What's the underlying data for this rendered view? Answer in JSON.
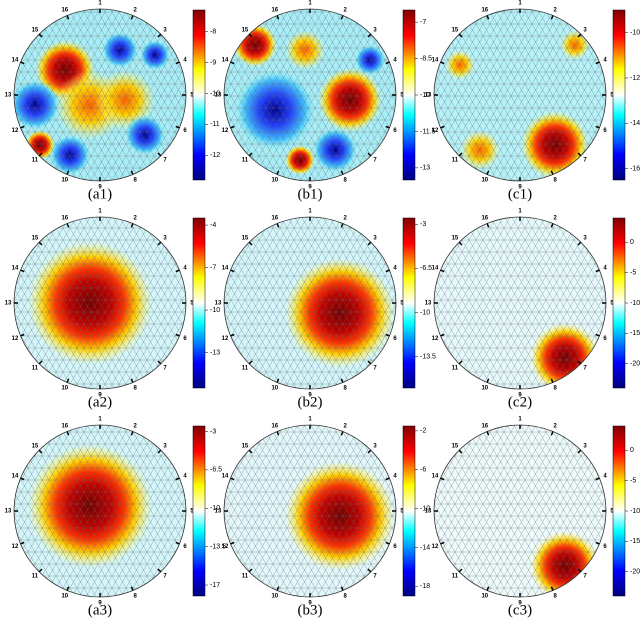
{
  "electrode_labels": [
    "1",
    "2",
    "3",
    "4",
    "5",
    "6",
    "7",
    "8",
    "9",
    "10",
    "11",
    "12",
    "13",
    "14",
    "15",
    "16"
  ],
  "panels": [
    {
      "label": "(a1)",
      "colorbar": {
        "range": [
          -7.3,
          -12.8
        ],
        "ticks": [
          -8,
          -9,
          -10,
          -11,
          -12
        ]
      }
    },
    {
      "label": "(b1)",
      "colorbar": {
        "range": [
          -6.5,
          -13.5
        ],
        "ticks": [
          -7,
          -8.5,
          -10,
          -11.5,
          -13
        ]
      }
    },
    {
      "label": "(c1)",
      "colorbar": {
        "range": [
          -9,
          -16.5
        ],
        "ticks": [
          -10,
          -12,
          -14,
          -16
        ]
      }
    },
    {
      "label": "(a2)",
      "colorbar": {
        "range": [
          -3.5,
          -15.5
        ],
        "ticks": [
          -4,
          -7,
          -10,
          -13
        ]
      }
    },
    {
      "label": "(b2)",
      "colorbar": {
        "range": [
          -2.5,
          -16
        ],
        "ticks": [
          -3,
          -6.5,
          -10,
          -13.5
        ]
      }
    },
    {
      "label": "(c2)",
      "colorbar": {
        "range": [
          4,
          -24
        ],
        "ticks": [
          0,
          -5,
          -10,
          -15,
          -20
        ]
      }
    },
    {
      "label": "(a3)",
      "colorbar": {
        "range": [
          -2.5,
          -18
        ],
        "ticks": [
          -3,
          -6.5,
          -10,
          -13.5,
          -17
        ]
      }
    },
    {
      "label": "(b3)",
      "colorbar": {
        "range": [
          -1.5,
          -19
        ],
        "ticks": [
          -2,
          -6,
          -10,
          -14,
          -18
        ]
      }
    },
    {
      "label": "(c3)",
      "colorbar": {
        "range": [
          4,
          -24
        ],
        "ticks": [
          0,
          -5,
          -10,
          -15,
          -20
        ]
      }
    }
  ]
}
